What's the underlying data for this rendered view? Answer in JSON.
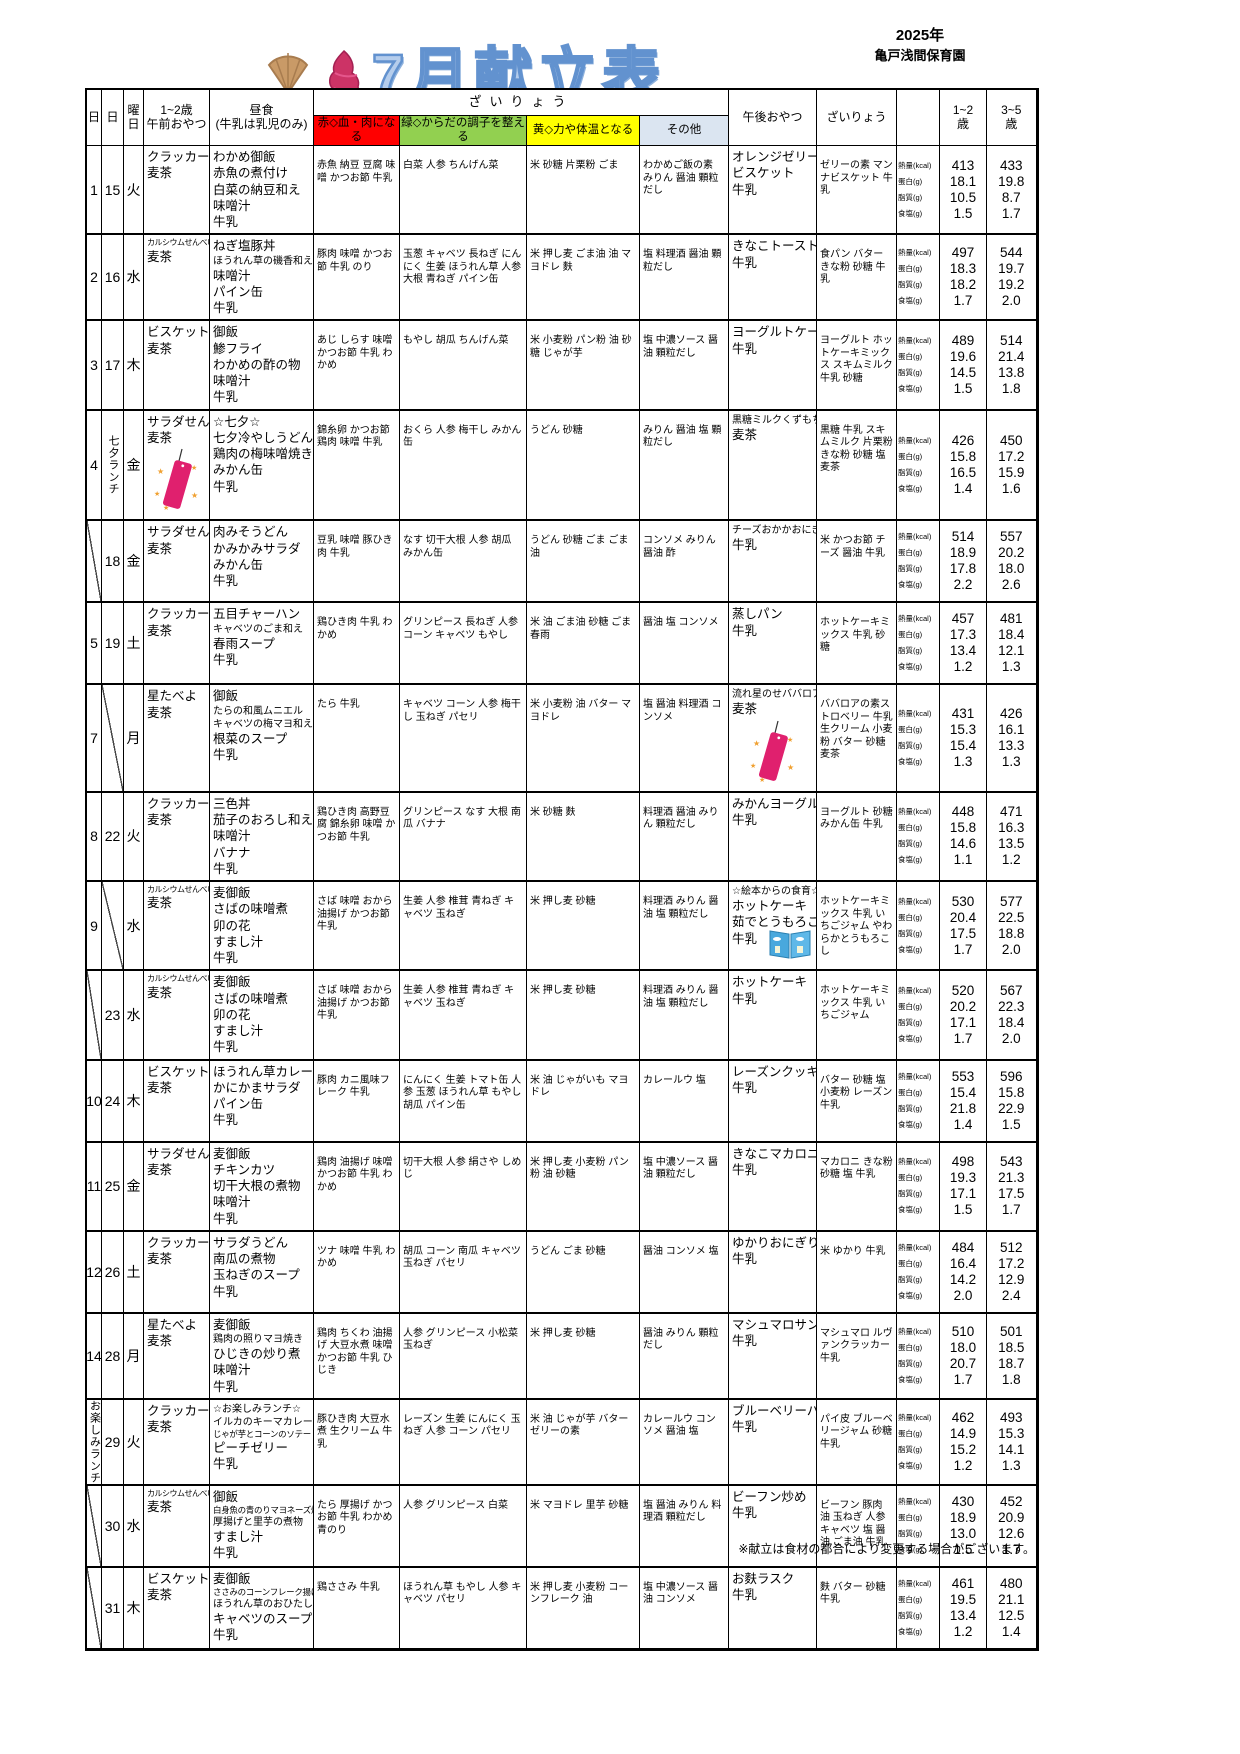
{
  "meta": {
    "title": "7月献立表",
    "year": "2025年",
    "school": "亀戸浅間保育園",
    "footer_note": "※献立は食材の都合により変更する場合がございます。"
  },
  "colors": {
    "red_group": "#ff0000",
    "green_group": "#92d050",
    "yellow_group": "#ffff00",
    "other_group_bg": "#dbe5f1",
    "title_fill": "#b5cdec",
    "title_stroke": "#6292cf",
    "tanzaku_pink": "#e0206e"
  },
  "header": {
    "date_a": "日",
    "date_b": "日",
    "weekday": "曜\n日",
    "am_snack": "1~2歳\n午前おやつ",
    "lunch": "昼食\n(牛乳は乳児のみ)",
    "ingredients_group": "ざいりょう",
    "cat_red": "赤◇血・肉になる",
    "cat_green": "緑◇からだの調子を整える",
    "cat_yellow": "黄◇力や体温となる",
    "cat_other": "その他",
    "pm_snack": "午後おやつ",
    "pm_ingredients": "ざいりょう",
    "age12": "1~2\n歳",
    "age35": "3~5\n歳",
    "nutrient_labels": [
      "熱量(kcal)",
      "蛋白(g)",
      "脂質(g)",
      "食塩(g)"
    ]
  },
  "rows": [
    {
      "d1": "1",
      "d2": "15",
      "weekday": "火",
      "am_snack": [
        "クラッカー",
        "麦茶"
      ],
      "lunch": [
        "わかめ御飯",
        "赤魚の煮付け",
        "白菜の納豆和え",
        "味噌汁",
        "牛乳"
      ],
      "red": "赤魚 納豆 豆腐 味噌 かつお節 牛乳",
      "green": "白菜 人参 ちんげん菜",
      "yellow": "米 砂糖 片栗粉 ごま",
      "other": "わかめご飯の素 みりん 醤油 顆粒だし",
      "pm_snack": [
        "オレンジゼリー",
        "ビスケット",
        "牛乳"
      ],
      "pm_ing": "ゼリーの素 マンナビスケット 牛乳",
      "n12": [
        "413",
        "18.1",
        "10.5",
        "1.5"
      ],
      "n35": [
        "433",
        "19.8",
        "8.7",
        "1.7"
      ]
    },
    {
      "d1": "2",
      "d2": "16",
      "weekday": "水",
      "am_snack": [
        "カルシウムせんべい",
        "麦茶"
      ],
      "lunch": [
        "ねぎ塩豚丼",
        "ほうれん草の磯香和え",
        "味噌汁",
        "パイン缶",
        "牛乳"
      ],
      "red": "豚肉 味噌 かつお節 牛乳 のり",
      "green": "玉葱 キャベツ 長ねぎ にんにく 生姜 ほうれん草 人参 大根 青ねぎ パイン缶",
      "yellow": "米 押し麦 ごま油 油 マヨドレ 麩",
      "other": "塩 料理酒 醤油 顆粒だし",
      "pm_snack": [
        "きなこトースト",
        "牛乳"
      ],
      "pm_ing": "食パン バター きな粉 砂糖 牛乳",
      "n12": [
        "497",
        "18.3",
        "18.2",
        "1.7"
      ],
      "n35": [
        "544",
        "19.7",
        "19.2",
        "2.0"
      ]
    },
    {
      "d1": "3",
      "d2": "17",
      "weekday": "木",
      "am_snack": [
        "ビスケット",
        "麦茶"
      ],
      "lunch": [
        "御飯",
        "鯵フライ",
        "わかめの酢の物",
        "味噌汁",
        "牛乳"
      ],
      "red": "あじ しらす 味噌 かつお節 牛乳 わかめ",
      "green": "もやし 胡瓜 ちんげん菜",
      "yellow": "米 小麦粉 パン粉 油 砂糖 じゃが芋",
      "other": "塩 中濃ソース 醤油 顆粒だし",
      "pm_snack": [
        "ヨーグルトケーキ",
        "牛乳"
      ],
      "pm_ing": "ヨーグルト ホットケーキミックス スキムミルク 牛乳 砂糖",
      "n12": [
        "489",
        "19.6",
        "14.5",
        "1.5"
      ],
      "n35": [
        "514",
        "21.4",
        "13.8",
        "1.8"
      ]
    },
    {
      "d1": "4",
      "d2": "七夕ランチ",
      "d2_vert": true,
      "weekday": "金",
      "am_snack": [
        "サラダせん",
        "麦茶"
      ],
      "am_deco": "tanzaku",
      "lunch": [
        "☆七夕☆",
        "七夕冷やしうどん",
        "鶏肉の梅味噌焼き",
        "みかん缶",
        "牛乳"
      ],
      "red": "錦糸卵 かつお節 鶏肉 味噌 牛乳",
      "green": "おくら 人参 梅干し みかん缶",
      "yellow": "うどん 砂糖",
      "other": "みりん 醤油 塩 顆粒だし",
      "pm_snack": [
        "黒糖ミルクくずもち",
        "麦茶"
      ],
      "pm_ing": "黒糖 牛乳 スキムミルク 片栗粉 きな粉 砂糖 塩 麦茶",
      "n12": [
        "426",
        "15.8",
        "16.5",
        "1.4"
      ],
      "n35": [
        "450",
        "17.2",
        "15.9",
        "1.6"
      ]
    },
    {
      "d1": "",
      "d1_slash": true,
      "d2": "18",
      "weekday": "金",
      "am_snack": [
        "サラダせん",
        "麦茶"
      ],
      "lunch": [
        "肉みそうどん",
        "かみかみサラダ",
        "みかん缶",
        "牛乳"
      ],
      "red": "豆乳 味噌 豚ひき肉 牛乳",
      "green": "なす 切干大根 人参 胡瓜 みかん缶",
      "yellow": "うどん 砂糖 ごま ごま油",
      "other": "コンソメ みりん 醤油 酢",
      "pm_snack": [
        "チーズおかかおにぎり",
        "牛乳"
      ],
      "pm_ing": "米 かつお節 チーズ 醤油 牛乳",
      "n12": [
        "514",
        "18.9",
        "17.8",
        "2.2"
      ],
      "n35": [
        "557",
        "20.2",
        "18.0",
        "2.6"
      ]
    },
    {
      "d1": "5",
      "d2": "19",
      "weekday": "土",
      "am_snack": [
        "クラッカー",
        "麦茶"
      ],
      "lunch": [
        "五目チャーハン",
        "キャベツのごま和え",
        "春雨スープ",
        "牛乳"
      ],
      "red": "鶏ひき肉 牛乳 わかめ",
      "green": "グリンピース 長ねぎ 人参 コーン キャベツ もやし",
      "yellow": "米 油 ごま油 砂糖 ごま 春雨",
      "other": "醤油 塩 コンソメ",
      "pm_snack": [
        "蒸しパン",
        "牛乳"
      ],
      "pm_ing": "ホットケーキミックス 牛乳 砂糖",
      "n12": [
        "457",
        "17.3",
        "13.4",
        "1.2"
      ],
      "n35": [
        "481",
        "18.4",
        "12.1",
        "1.3"
      ]
    },
    {
      "d1": "7",
      "d2": "",
      "d2_slash": true,
      "weekday": "月",
      "am_snack": [
        "星たべよ",
        "麦茶"
      ],
      "lunch": [
        "御飯",
        "たらの和風ムニエル",
        "キャベツの梅マヨ和え",
        "根菜のスープ",
        "牛乳"
      ],
      "red": "たら 牛乳",
      "green": "キャベツ コーン 人参 梅干し 玉ねぎ パセリ",
      "yellow": "米 小麦粉 油 バター マヨドレ",
      "other": "塩 醤油 料理酒 コンソメ",
      "pm_snack": [
        "流れ星のせババロア",
        "麦茶"
      ],
      "pm_deco": "tanzaku",
      "pm_ing": "ババロアの素ストロベリー 牛乳 生クリーム 小麦粉 バター 砂糖 麦茶",
      "n12": [
        "431",
        "15.3",
        "15.4",
        "1.3"
      ],
      "n35": [
        "426",
        "16.1",
        "13.3",
        "1.3"
      ]
    },
    {
      "d1": "8",
      "d2": "22",
      "weekday": "火",
      "am_snack": [
        "クラッカー",
        "麦茶"
      ],
      "lunch": [
        "三色丼",
        "茄子のおろし和え",
        "味噌汁",
        "バナナ",
        "牛乳"
      ],
      "red": "鶏ひき肉 高野豆腐 錦糸卵 味噌 かつお節 牛乳",
      "green": "グリンピース なす 大根 南瓜 バナナ",
      "yellow": "米 砂糖 麩",
      "other": "料理酒 醤油 みりん 顆粒だし",
      "pm_snack": [
        "みかんヨーグルト",
        "牛乳"
      ],
      "pm_ing": "ヨーグルト 砂糖 みかん缶 牛乳",
      "n12": [
        "448",
        "15.8",
        "14.6",
        "1.1"
      ],
      "n35": [
        "471",
        "16.3",
        "13.5",
        "1.2"
      ]
    },
    {
      "d1": "9",
      "d2": "",
      "d2_slash": true,
      "weekday": "水",
      "am_snack": [
        "カルシウムせんべい",
        "麦茶"
      ],
      "lunch": [
        "麦御飯",
        "さばの味噌煮",
        "卯の花",
        "すまし汁",
        "牛乳"
      ],
      "red": "さば 味噌 おから 油揚げ かつお節 牛乳",
      "green": "生姜 人参 椎茸 青ねぎ キャベツ 玉ねぎ",
      "yellow": "米 押し麦 砂糖",
      "other": "料理酒 みりん 醤油 塩 顆粒だし",
      "pm_snack": [
        "☆絵本からの食育☆",
        "ホットケーキ",
        "茹でとうもろこし",
        "牛乳"
      ],
      "pm_deco": "book",
      "pm_ing": "ホットケーキミックス 牛乳 いちごジャム やわらかとうもろこし",
      "n12": [
        "530",
        "20.4",
        "17.5",
        "1.7"
      ],
      "n35": [
        "577",
        "22.5",
        "18.8",
        "2.0"
      ]
    },
    {
      "d1": "",
      "d1_slash": true,
      "d2": "23",
      "weekday": "水",
      "am_snack": [
        "カルシウムせんべい",
        "麦茶"
      ],
      "lunch": [
        "麦御飯",
        "さばの味噌煮",
        "卯の花",
        "すまし汁",
        "牛乳"
      ],
      "red": "さば 味噌 おから 油揚げ かつお節 牛乳",
      "green": "生姜 人参 椎茸 青ねぎ キャベツ 玉ねぎ",
      "yellow": "米 押し麦 砂糖",
      "other": "料理酒 みりん 醤油 塩 顆粒だし",
      "pm_snack": [
        "ホットケーキ",
        "牛乳"
      ],
      "pm_ing": "ホットケーキミックス 牛乳 いちごジャム",
      "n12": [
        "520",
        "20.2",
        "17.1",
        "1.7"
      ],
      "n35": [
        "567",
        "22.3",
        "18.4",
        "2.0"
      ]
    },
    {
      "d1": "10",
      "d2": "24",
      "weekday": "木",
      "am_snack": [
        "ビスケット",
        "麦茶"
      ],
      "lunch": [
        "ほうれん草カレー",
        "かにかまサラダ",
        "パイン缶",
        "牛乳"
      ],
      "red": "豚肉 カニ風味フレーク 牛乳",
      "green": "にんにく 生姜 トマト缶 人参 玉葱 ほうれん草 もやし 胡瓜 パイン缶",
      "yellow": "米 油 じゃがいも マヨドレ",
      "other": "カレールウ 塩",
      "pm_snack": [
        "レーズンクッキー",
        "牛乳"
      ],
      "pm_ing": "バター 砂糖 塩 小麦粉 レーズン 牛乳",
      "n12": [
        "553",
        "15.4",
        "21.8",
        "1.4"
      ],
      "n35": [
        "596",
        "15.8",
        "22.9",
        "1.5"
      ]
    },
    {
      "d1": "11",
      "d2": "25",
      "weekday": "金",
      "am_snack": [
        "サラダせん",
        "麦茶"
      ],
      "lunch": [
        "麦御飯",
        "チキンカツ",
        "切干大根の煮物",
        "味噌汁",
        "牛乳"
      ],
      "red": "鶏肉 油揚げ 味噌 かつお節 牛乳 わかめ",
      "green": "切干大根 人参 絹さや しめじ",
      "yellow": "米 押し麦 小麦粉 パン粉 油 砂糖",
      "other": "塩 中濃ソース 醤油 顆粒だし",
      "pm_snack": [
        "きなこマカロニ",
        "牛乳"
      ],
      "pm_ing": "マカロニ きな粉 砂糖 塩 牛乳",
      "n12": [
        "498",
        "19.3",
        "17.1",
        "1.5"
      ],
      "n35": [
        "543",
        "21.3",
        "17.5",
        "1.7"
      ]
    },
    {
      "d1": "12",
      "d2": "26",
      "weekday": "土",
      "am_snack": [
        "クラッカー",
        "麦茶"
      ],
      "lunch": [
        "サラダうどん",
        "南瓜の煮物",
        "玉ねぎのスープ",
        "牛乳"
      ],
      "red": "ツナ 味噌 牛乳 わかめ",
      "green": "胡瓜 コーン 南瓜 キャベツ 玉ねぎ パセリ",
      "yellow": "うどん ごま 砂糖",
      "other": "醤油 コンソメ 塩",
      "pm_snack": [
        "ゆかりおにぎり",
        "牛乳"
      ],
      "pm_ing": "米 ゆかり 牛乳",
      "n12": [
        "484",
        "16.4",
        "14.2",
        "2.0"
      ],
      "n35": [
        "512",
        "17.2",
        "12.9",
        "2.4"
      ]
    },
    {
      "d1": "14",
      "d2": "28",
      "weekday": "月",
      "am_snack": [
        "星たべよ",
        "麦茶"
      ],
      "lunch": [
        "麦御飯",
        "鶏肉の照りマヨ焼き",
        "ひじきの炒り煮",
        "味噌汁",
        "牛乳"
      ],
      "red": "鶏肉 ちくわ 油揚げ 大豆水煮 味噌 かつお節 牛乳 ひじき",
      "green": "人参 グリンピース 小松菜 玉ねぎ",
      "yellow": "米 押し麦 砂糖",
      "other": "醤油 みりん 顆粒だし",
      "pm_snack": [
        "マシュマロサンド",
        "牛乳"
      ],
      "pm_ing": "マシュマロ ルヴァンクラッカー 牛乳",
      "n12": [
        "510",
        "18.0",
        "20.7",
        "1.7"
      ],
      "n35": [
        "501",
        "18.5",
        "18.7",
        "1.8"
      ]
    },
    {
      "d1": "お楽しみランチ",
      "d1_vert": true,
      "d2": "29",
      "weekday": "火",
      "am_snack": [
        "クラッカー",
        "麦茶"
      ],
      "lunch": [
        "☆お楽しみランチ☆",
        "イルカのキーマカレー",
        "じゃが芋とコーンのソテー",
        "ピーチゼリー",
        "牛乳"
      ],
      "red": "豚ひき肉 大豆水煮 生クリーム 牛乳",
      "green": "レーズン 生姜 にんにく 玉ねぎ 人参 コーン パセリ",
      "yellow": "米 油 じゃが芋 バター ゼリーの素",
      "other": "カレールウ コンソメ 醤油 塩",
      "pm_snack": [
        "ブルーベリーパイ",
        "牛乳"
      ],
      "pm_ing": "パイ皮 ブルーベリージャム 砂糖 牛乳",
      "n12": [
        "462",
        "14.9",
        "15.2",
        "1.2"
      ],
      "n35": [
        "493",
        "15.3",
        "14.1",
        "1.3"
      ]
    },
    {
      "d1": "",
      "d1_slash": true,
      "d2": "30",
      "weekday": "水",
      "am_snack": [
        "カルシウムせんべい",
        "麦茶"
      ],
      "lunch": [
        "御飯",
        "白身魚の青のりマヨネーズ焼き",
        "厚揚げと里芋の煮物",
        "すまし汁",
        "牛乳"
      ],
      "red": "たら 厚揚げ かつお節 牛乳 わかめ 青のり",
      "green": "人参 グリンピース 白菜",
      "yellow": "米 マヨドレ 里芋 砂糖",
      "other": "塩 醤油 みりん 料理酒 顆粒だし",
      "pm_snack": [
        "ビーフン炒め",
        "牛乳"
      ],
      "pm_ing": "ビーフン 豚肉 油 玉ねぎ 人参 キャベツ 塩 醤油 ごま油 牛乳",
      "n12": [
        "430",
        "18.9",
        "13.0",
        "1.5"
      ],
      "n35": [
        "452",
        "20.9",
        "12.6",
        "1.7"
      ]
    },
    {
      "d1": "",
      "d1_slash": true,
      "d2": "31",
      "weekday": "木",
      "am_snack": [
        "ビスケット",
        "麦茶"
      ],
      "lunch": [
        "麦御飯",
        "ささみのコーンフレーク揚げ",
        "ほうれん草のおひたし",
        "キャベツのスープ",
        "牛乳"
      ],
      "red": "鶏ささみ 牛乳",
      "green": "ほうれん草 もやし 人参 キャベツ パセリ",
      "yellow": "米 押し麦 小麦粉 コーンフレーク 油",
      "other": "塩 中濃ソース 醤油 コンソメ",
      "pm_snack": [
        "お麩ラスク",
        "牛乳"
      ],
      "pm_ing": "麩 バター 砂糖 牛乳",
      "n12": [
        "461",
        "19.5",
        "13.4",
        "1.2"
      ],
      "n35": [
        "480",
        "21.1",
        "12.5",
        "1.4"
      ]
    }
  ]
}
